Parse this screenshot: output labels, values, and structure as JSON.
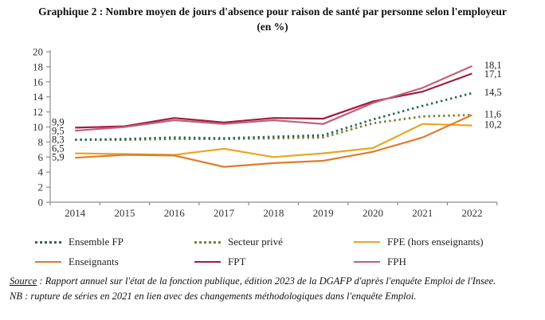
{
  "title": "Graphique 2 : Nombre moyen de jours d'absence pour raison de santé par personne selon l'employeur (en %)",
  "chart_data": {
    "type": "line",
    "x": [
      2014,
      2015,
      2016,
      2017,
      2018,
      2019,
      2020,
      2021,
      2022
    ],
    "ylim": [
      0,
      20
    ],
    "ytick_step": 2,
    "grid": false,
    "legend_position": "bottom",
    "series": [
      {
        "name": "Ensemble FP",
        "color": "#26685e",
        "style": "dotted",
        "values": [
          8.3,
          8.4,
          8.6,
          8.5,
          8.7,
          8.9,
          11.0,
          12.8,
          14.5
        ]
      },
      {
        "name": "Secteur privé",
        "color": "#7d7d33",
        "style": "dotted",
        "values": [
          8.3,
          8.3,
          8.4,
          8.4,
          8.5,
          8.6,
          10.5,
          11.4,
          11.6
        ]
      },
      {
        "name": "FPE (hors enseignants)",
        "color": "#e5a822",
        "style": "solid",
        "values": [
          6.5,
          6.4,
          6.3,
          7.1,
          6.0,
          6.5,
          7.2,
          10.4,
          10.2
        ]
      },
      {
        "name": "Enseignants",
        "color": "#e07b2c",
        "style": "solid",
        "values": [
          5.9,
          6.3,
          6.2,
          4.7,
          5.2,
          5.5,
          6.7,
          8.6,
          11.6
        ]
      },
      {
        "name": "FPT",
        "color": "#a01c40",
        "style": "solid",
        "values": [
          9.9,
          10.1,
          11.2,
          10.6,
          11.2,
          11.1,
          13.4,
          14.7,
          17.1
        ]
      },
      {
        "name": "FPH",
        "color": "#bf6078",
        "style": "solid",
        "values": [
          9.5,
          10.0,
          10.9,
          10.4,
          10.9,
          10.4,
          13.2,
          15.2,
          18.1
        ]
      }
    ],
    "annotations": {
      "left": [
        {
          "text": "9,9",
          "value": 9.9
        },
        {
          "text": "9,5",
          "value": 9.5
        },
        {
          "text": "8,3",
          "value": 8.3
        },
        {
          "text": "6,5",
          "value": 6.5
        },
        {
          "text": "5,9",
          "value": 5.9
        }
      ],
      "right": [
        {
          "text": "18,1",
          "value": 18.1
        },
        {
          "text": "17,1",
          "value": 17.1
        },
        {
          "text": "14,5",
          "value": 14.5
        },
        {
          "text": "11,6",
          "value": 11.6
        },
        {
          "text": "10,2",
          "value": 10.2
        }
      ]
    }
  },
  "source": {
    "label": "Source",
    "text": " : Rapport annuel sur l'état de la fonction publique, édition 2023 de la DGAFP d'après l'enquête Emploi de l'Insee.",
    "nb": "NB : rupture de séries en 2021 en lien avec des changements méthodologiques dans l'enquête Emploi."
  }
}
